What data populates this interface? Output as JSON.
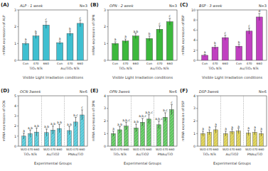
{
  "chart_data": [
    {
      "type": "bar",
      "panel": "(A)",
      "title": "ALP - 1 week",
      "note": "N=3",
      "y_label": "mRNA expression of ALP",
      "x_label": "Visible Light Irradiation conditions",
      "groups": [
        "TiO₂ NTs",
        "Au/TiO₂ NTs"
      ],
      "categories": [
        "Con",
        "470",
        "660",
        "Con",
        "470",
        "660"
      ],
      "values": [
        1.0,
        1.45,
        2.1,
        1.05,
        1.6,
        2.2
      ],
      "errors": [
        0.1,
        0.15,
        0.2,
        0.1,
        0.15,
        0.2
      ],
      "letters": [
        "a",
        "b",
        "c",
        "a",
        "b",
        "c"
      ],
      "color": "#3fbfd0",
      "ylim": [
        0,
        3
      ],
      "yticks": [
        0,
        1,
        2,
        3
      ]
    },
    {
      "type": "bar",
      "panel": "(B)",
      "title": "OPN - 2 week",
      "note": "N=3",
      "y_label": "mRNA expression of OPN",
      "x_label": "Visible Light Irradiation conditions",
      "groups": [
        "TiO₂ NTs",
        "Au/TiO₂ NTs"
      ],
      "categories": [
        "Con",
        "470",
        "660",
        "Con",
        "470",
        "660"
      ],
      "values": [
        1.0,
        1.15,
        1.45,
        1.3,
        1.85,
        2.3
      ],
      "errors": [
        0.1,
        0.12,
        0.15,
        0.15,
        0.2,
        0.2
      ],
      "letters": [
        "a",
        "a",
        "a,b",
        "b",
        "c",
        "c"
      ],
      "color": "#3cb83c",
      "ylim": [
        0,
        3
      ],
      "yticks": [
        0,
        1,
        2,
        3
      ]
    },
    {
      "type": "bar",
      "panel": "(C)",
      "title": "BSP - 3 week",
      "note": "N=3",
      "y_label": "mRNA expression of BSP",
      "x_label": "Visible Light Irradiation conditions",
      "groups": [
        "TiO₂ NTs",
        "Au/TiO₂ NTs"
      ],
      "categories": [
        "Con",
        "470",
        "660",
        "Con",
        "470",
        "660"
      ],
      "values": [
        1.0,
        2.6,
        4.5,
        2.8,
        5.8,
        8.6
      ],
      "errors": [
        0.2,
        0.4,
        0.5,
        0.4,
        0.6,
        0.7
      ],
      "letters": [
        "a",
        "b",
        "c",
        "b",
        "c",
        "d"
      ],
      "color": "#c040c0",
      "ylim": [
        0,
        10
      ],
      "yticks": [
        0,
        2,
        4,
        6,
        8,
        10
      ]
    },
    {
      "type": "bar",
      "panel": "(D)",
      "title": "OCN-3week",
      "note": "N=6",
      "y_label": "mRNA expression of OCN",
      "x_label": "Experimental Groups",
      "groups": [
        "TiO₂ NTs",
        "Au/TiO2",
        "PNAu/TiO"
      ],
      "categories": [
        "W/O",
        "470",
        "660",
        "W/O",
        "470",
        "660",
        "W/O",
        "470",
        "660"
      ],
      "values": [
        1.0,
        1.25,
        1.4,
        1.35,
        1.6,
        1.75,
        1.55,
        2.4,
        3.1
      ],
      "errors": [
        0.3,
        0.35,
        0.4,
        0.35,
        0.4,
        0.4,
        0.4,
        0.45,
        0.5
      ],
      "letters": [
        "a",
        "a,b",
        "a,b",
        "a,b",
        "a,b",
        "a,b",
        "a,b",
        "b,c",
        "c"
      ],
      "color": "#52c7d6",
      "ylim": [
        0,
        5
      ],
      "yticks": [
        0,
        1,
        2,
        3,
        4,
        5
      ]
    },
    {
      "type": "bar",
      "panel": "(E)",
      "title": "OPN-3week",
      "note": "N=6",
      "y_label": "mRNA expression of OPN",
      "x_label": "Experimental Groups",
      "groups": [
        "TiO₂ NTs",
        "Au/TiO2",
        "PNAu/TiO"
      ],
      "categories": [
        "W/O",
        "470",
        "660",
        "W/O",
        "470",
        "660",
        "W/O",
        "470",
        "660"
      ],
      "values": [
        1.0,
        1.3,
        1.6,
        1.45,
        1.9,
        2.15,
        1.7,
        2.3,
        2.9
      ],
      "errors": [
        0.2,
        0.25,
        0.3,
        0.3,
        0.3,
        0.35,
        0.3,
        0.35,
        0.4
      ],
      "letters": [
        "a",
        "a,b",
        "a,b,c",
        "a,b",
        "a,b,c",
        "a,b,c",
        "a,b,c",
        "b,c",
        "c"
      ],
      "color": "#5cc45c",
      "ylim": [
        0,
        4
      ],
      "yticks": [
        0,
        1,
        2,
        3,
        4
      ]
    },
    {
      "type": "bar",
      "panel": "(F)",
      "title": "DSP-3week",
      "note": "N=6",
      "y_label": "mRNA expression of DSP",
      "x_label": "Experimental Groups",
      "groups": [
        "TiO₂ NTs",
        "Au/TiO2",
        "PNAu/TiO"
      ],
      "categories": [
        "W/O",
        "470",
        "660",
        "W/O",
        "470",
        "660",
        "W/O",
        "470",
        "660"
      ],
      "values": [
        1.0,
        1.1,
        1.3,
        1.0,
        1.15,
        1.2,
        1.05,
        1.1,
        1.0
      ],
      "errors": [
        0.2,
        0.2,
        0.25,
        0.2,
        0.2,
        0.2,
        0.2,
        0.2,
        0.2
      ],
      "letters": [
        "a",
        "a",
        "a",
        "a",
        "a",
        "a",
        "a",
        "a",
        "a"
      ],
      "color": "#d8cc50",
      "ylim": [
        0,
        4
      ],
      "yticks": [
        0,
        1,
        2,
        3,
        4
      ]
    }
  ]
}
